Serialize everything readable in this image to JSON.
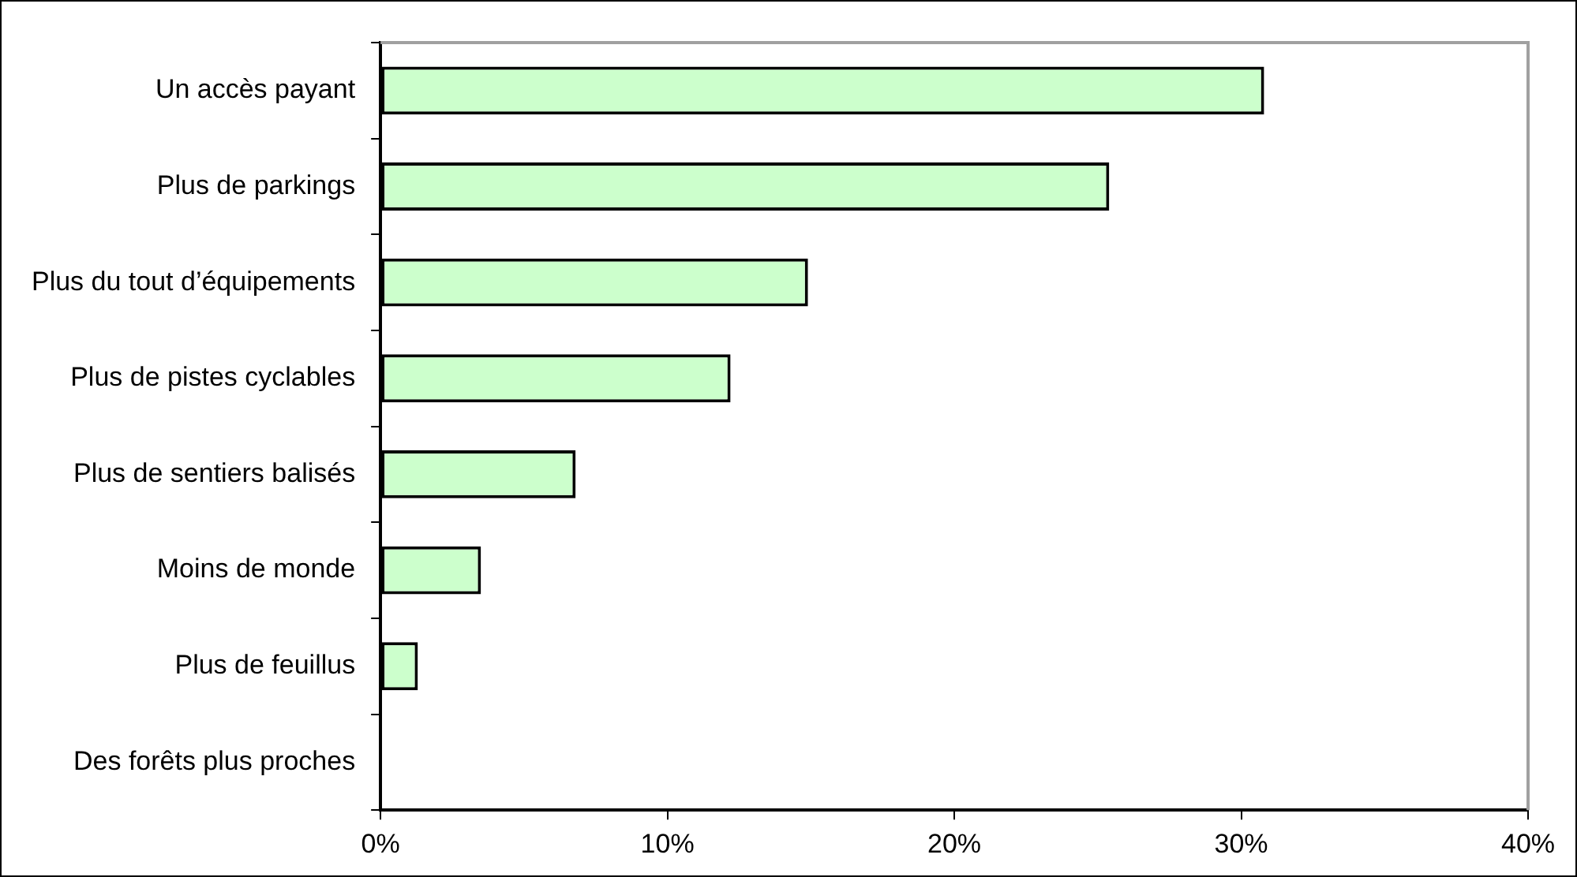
{
  "chart_data": {
    "type": "bar",
    "orientation": "horizontal",
    "categories": [
      "Un accès payant",
      "Plus de parkings",
      "Plus du tout d’équipements",
      "Plus de pistes cyclables",
      "Plus de sentiers balisés",
      "Moins de monde",
      "Plus de feuillus",
      "Des forêts plus proches"
    ],
    "values": [
      30.8,
      25.4,
      14.9,
      12.2,
      6.8,
      3.5,
      1.3,
      0
    ],
    "color": "#ccffcc",
    "xlim": [
      0,
      40
    ],
    "xticks": [
      {
        "value": 0,
        "label": "0%"
      },
      {
        "value": 10,
        "label": "10%"
      },
      {
        "value": 20,
        "label": "20%"
      },
      {
        "value": 30,
        "label": "30%"
      },
      {
        "value": 40,
        "label": "40%"
      }
    ],
    "grid": false,
    "legend": false
  }
}
